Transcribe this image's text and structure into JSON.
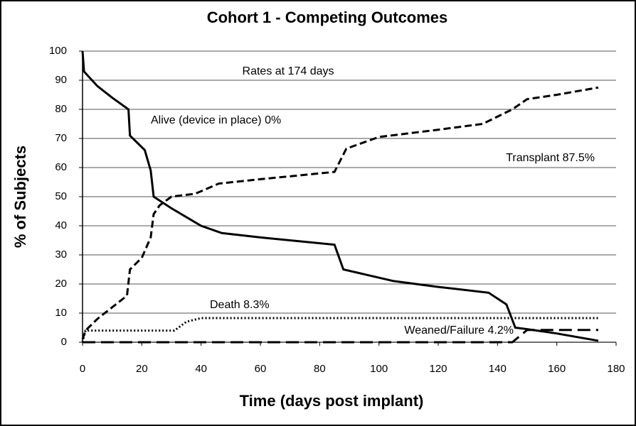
{
  "chart_data": {
    "type": "line",
    "title": "Cohort 1 - Competing Outcomes",
    "x_label": "Time (days post implant)",
    "y_label": "% of Subjects",
    "annotation": "Rates at 174 days",
    "xlim": [
      0,
      180
    ],
    "xticks": [
      0,
      20,
      40,
      60,
      80,
      100,
      120,
      140,
      160,
      180
    ],
    "ylim": [
      0,
      100
    ],
    "yticks": [
      0,
      10,
      20,
      30,
      40,
      50,
      60,
      70,
      80,
      90,
      100
    ],
    "grid": true,
    "color": "#000000",
    "series": [
      {
        "name": "Alive (device in place) 0%",
        "dash": "solid",
        "x": [
          0,
          0.5,
          5,
          10,
          15.5,
          16,
          19,
          21,
          23,
          24,
          30,
          40,
          47,
          60,
          85,
          88,
          105,
          120,
          137,
          143,
          146,
          150,
          160,
          174
        ],
        "values": [
          100,
          93,
          88,
          84,
          80,
          71,
          68,
          66,
          59,
          50,
          46,
          40,
          37.5,
          36,
          33.5,
          25,
          21,
          19,
          17,
          13,
          5,
          4.5,
          3,
          0.5
        ]
      },
      {
        "name": "Transplant 87.5%",
        "dash": "dashed",
        "x": [
          0,
          1,
          5,
          10,
          15,
          16,
          20,
          23,
          24,
          26,
          30,
          38,
          46,
          60,
          85,
          89,
          100,
          120,
          135,
          145,
          150,
          160,
          174
        ],
        "values": [
          1,
          4,
          8,
          12,
          16,
          25,
          29,
          36,
          44,
          47,
          50,
          51,
          54.5,
          56,
          58.5,
          66.5,
          70.5,
          73,
          75,
          80,
          83.5,
          85,
          87.5
        ]
      },
      {
        "name": "Death 8.3%",
        "dash": "dotted",
        "x": [
          0,
          1,
          31,
          35,
          40,
          174
        ],
        "values": [
          0,
          4,
          4,
          7,
          8.3,
          8.3
        ]
      },
      {
        "name": "Weaned/Failure 4.2%",
        "dash": "longdash",
        "x": [
          0,
          145,
          150,
          174
        ],
        "values": [
          0,
          0,
          4.2,
          4.2
        ]
      }
    ]
  }
}
